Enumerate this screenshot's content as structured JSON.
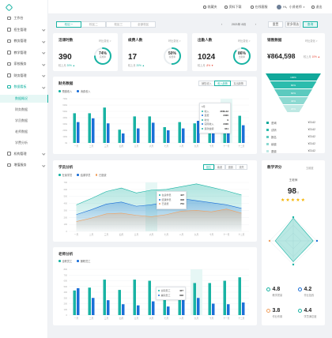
{
  "sidebar": {
    "items": [
      {
        "label": "工作台",
        "top": 0
      },
      {
        "label": "招生管理"
      },
      {
        "label": "教务管理"
      },
      {
        "label": "教学管理"
      },
      {
        "label": "家校服务"
      },
      {
        "label": "财务管理"
      },
      {
        "label": "数据看板"
      }
    ],
    "sub_items": [
      "数据概况",
      "财务数据",
      "学员数据",
      "老师数据",
      "学费分析"
    ],
    "more_items": [
      "机构管理",
      "增值服务"
    ]
  },
  "topbar": {
    "items": [
      "收藏夹",
      "资料下载",
      "在线客服"
    ],
    "user": "Hi，小贤老师",
    "logout": "退出"
  },
  "filter": {
    "tabs": [
      "校区一",
      "校区二",
      "校区三",
      "全部校区"
    ],
    "date": "2021年 8月",
    "buttons": [
      "重置",
      "更多筛选",
      "查询"
    ]
  },
  "stats": [
    {
      "title": "活课时数",
      "more": "环比变化 >",
      "value": "390",
      "sub_label": "较上月",
      "sub_value": "20% ▲",
      "ring_pct": "74%",
      "ring_label": "完成率",
      "fraction": 0.74,
      "color": "#18b3a3",
      "trend": "up"
    },
    {
      "title": "续费人数",
      "more": "环比变化 >",
      "value": "17",
      "sub_label": "较上月",
      "sub_value": "20% ▲",
      "ring_pct": "50%",
      "ring_label": "续费率",
      "fraction": 0.5,
      "color": "#18b3a3",
      "trend": "up"
    },
    {
      "title": "出勤人数",
      "more": "环比变化 >",
      "value": "1024",
      "sub_label": "较上月",
      "sub_value": "-8% ▼",
      "ring_pct": "86%",
      "ring_label": "出勤率",
      "fraction": 0.86,
      "color": "#18b3a3",
      "trend": "down"
    }
  ],
  "sales": {
    "title": "销售数据",
    "more": "环比变化 >",
    "value": "¥864,598",
    "sub_label": "较上月",
    "sub_value": "10% ▲",
    "funnel": [
      {
        "label": "咨询",
        "value": "¥2142",
        "pct": "100%",
        "color": "#11a89a"
      },
      {
        "label": "试听",
        "value": "¥2142",
        "pct": "80%",
        "color": "#2cbcad"
      },
      {
        "label": "报名",
        "value": "¥2142",
        "pct": "60%",
        "color": "#5ccabf"
      },
      {
        "label": "续费",
        "value": "¥2142",
        "pct": "40%",
        "color": "#8cd9d1"
      },
      {
        "label": "退费",
        "value": "¥2142",
        "pct": "20%",
        "color": "#bde8e3"
      }
    ]
  },
  "finance": {
    "title": "财务数据",
    "seg": [
      "销售收入",
      "收入趋势",
      "支出趋势"
    ],
    "legend": [
      "预缴收入",
      "消费收入"
    ],
    "colors": [
      "#18b3a3",
      "#1b6fd8"
    ],
    "tooltip": {
      "title": "6月",
      "rows": [
        [
          "收入",
          "4789.42"
        ],
        [
          "退费",
          "3400"
        ],
        [
          "收付",
          "9"
        ],
        [
          "实际收入",
          "3400"
        ],
        [
          "退款金额",
          "341"
        ]
      ]
    }
  },
  "students": {
    "title": "学员分析",
    "seg": [
      "招生",
      "续费",
      "退费",
      "流失"
    ],
    "legend": [
      "在读学员",
      "结课学员",
      "已退费"
    ],
    "colors": [
      "#18b3a3",
      "#1b6fd8",
      "#f0a060"
    ],
    "tooltip": {
      "rows": [
        [
          "在读学员",
          "427"
        ],
        [
          "结课学员",
          "308"
        ],
        [
          "已退费",
          "764"
        ]
      ]
    }
  },
  "teachers": {
    "title": "老师分析",
    "legend": [
      "全职员工",
      "兼职员工"
    ],
    "colors": [
      "#18b3a3",
      "#1b6fd8"
    ],
    "tooltip": {
      "rows": [
        [
          "全职员工",
          "427"
        ],
        [
          "兼职员工",
          "308"
        ]
      ]
    }
  },
  "score": {
    "title": "教学评分",
    "more": "五维度",
    "teacher": "王老师",
    "value": "98",
    "unit": "分",
    "metrics": [
      {
        "value": "4.8",
        "label": "教学质量"
      },
      {
        "value": "4.2",
        "label": "作业批改"
      },
      {
        "value": "3.8",
        "label": "作业布置"
      },
      {
        "value": "4.4",
        "label": "学员满意度"
      }
    ]
  },
  "chart_data": [
    {
      "type": "bar",
      "title": "财务数据",
      "categories": [
        "一月",
        "二月",
        "三月",
        "四月",
        "五月",
        "六月",
        "七月",
        "八月",
        "九月",
        "十月",
        "十一月",
        "十二月"
      ],
      "series": [
        {
          "name": "预缴收入",
          "values": [
            470,
            470,
            560,
            210,
            420,
            420,
            250,
            330,
            310,
            330,
            530,
            430
          ]
        },
        {
          "name": "消费收入",
          "values": [
            330,
            390,
            310,
            150,
            230,
            320,
            200,
            230,
            350,
            160,
            380,
            280
          ]
        }
      ],
      "ylim": [
        0,
        700
      ],
      "yticks": [
        "0k",
        "100k",
        "200k",
        "300k",
        "400k",
        "500k",
        "600k",
        "700k"
      ]
    },
    {
      "type": "area",
      "title": "学员分析",
      "categories": [
        "一月",
        "二月",
        "三月",
        "四月",
        "五月",
        "六月",
        "七月",
        "八月",
        "九月",
        "十月",
        "十一月",
        "十二月"
      ],
      "series": [
        {
          "name": "在读学员",
          "values": [
            380,
            470,
            570,
            620,
            550,
            590,
            600,
            640,
            680,
            630,
            580,
            520
          ]
        },
        {
          "name": "结课学员",
          "values": [
            240,
            310,
            390,
            420,
            360,
            380,
            420,
            470,
            440,
            410,
            380,
            330
          ]
        },
        {
          "name": "已退费",
          "values": [
            140,
            190,
            250,
            260,
            230,
            210,
            240,
            290,
            300,
            280,
            320,
            260
          ]
        }
      ],
      "ylim": [
        0,
        700
      ],
      "yticks": [
        "0",
        "100",
        "200",
        "300",
        "400",
        "500",
        "600",
        "700"
      ]
    },
    {
      "type": "bar",
      "title": "老师分析",
      "categories": [
        "一月",
        "二月",
        "三月",
        "四月",
        "五月",
        "六月",
        "七月",
        "八月",
        "九月",
        "十月",
        "十一月",
        "十二月"
      ],
      "series": [
        {
          "name": "全职员工",
          "values": [
            430,
            480,
            620,
            440,
            620,
            600,
            380,
            480,
            560,
            560,
            600,
            660
          ]
        },
        {
          "name": "兼职员工",
          "values": [
            470,
            300,
            260,
            190,
            170,
            240,
            150,
            270,
            300,
            200,
            190,
            220
          ]
        }
      ],
      "ylim": [
        0,
        800
      ],
      "yticks": [
        "0",
        "100",
        "200",
        "300",
        "400",
        "500",
        "600",
        "700",
        "800"
      ]
    },
    {
      "type": "radar",
      "title": "教学评分",
      "axes": [
        "教学质量",
        "作业批改",
        "学员满意度",
        "作业布置"
      ],
      "values": [
        4.8,
        4.2,
        4.4,
        3.8
      ],
      "max": 5
    }
  ]
}
